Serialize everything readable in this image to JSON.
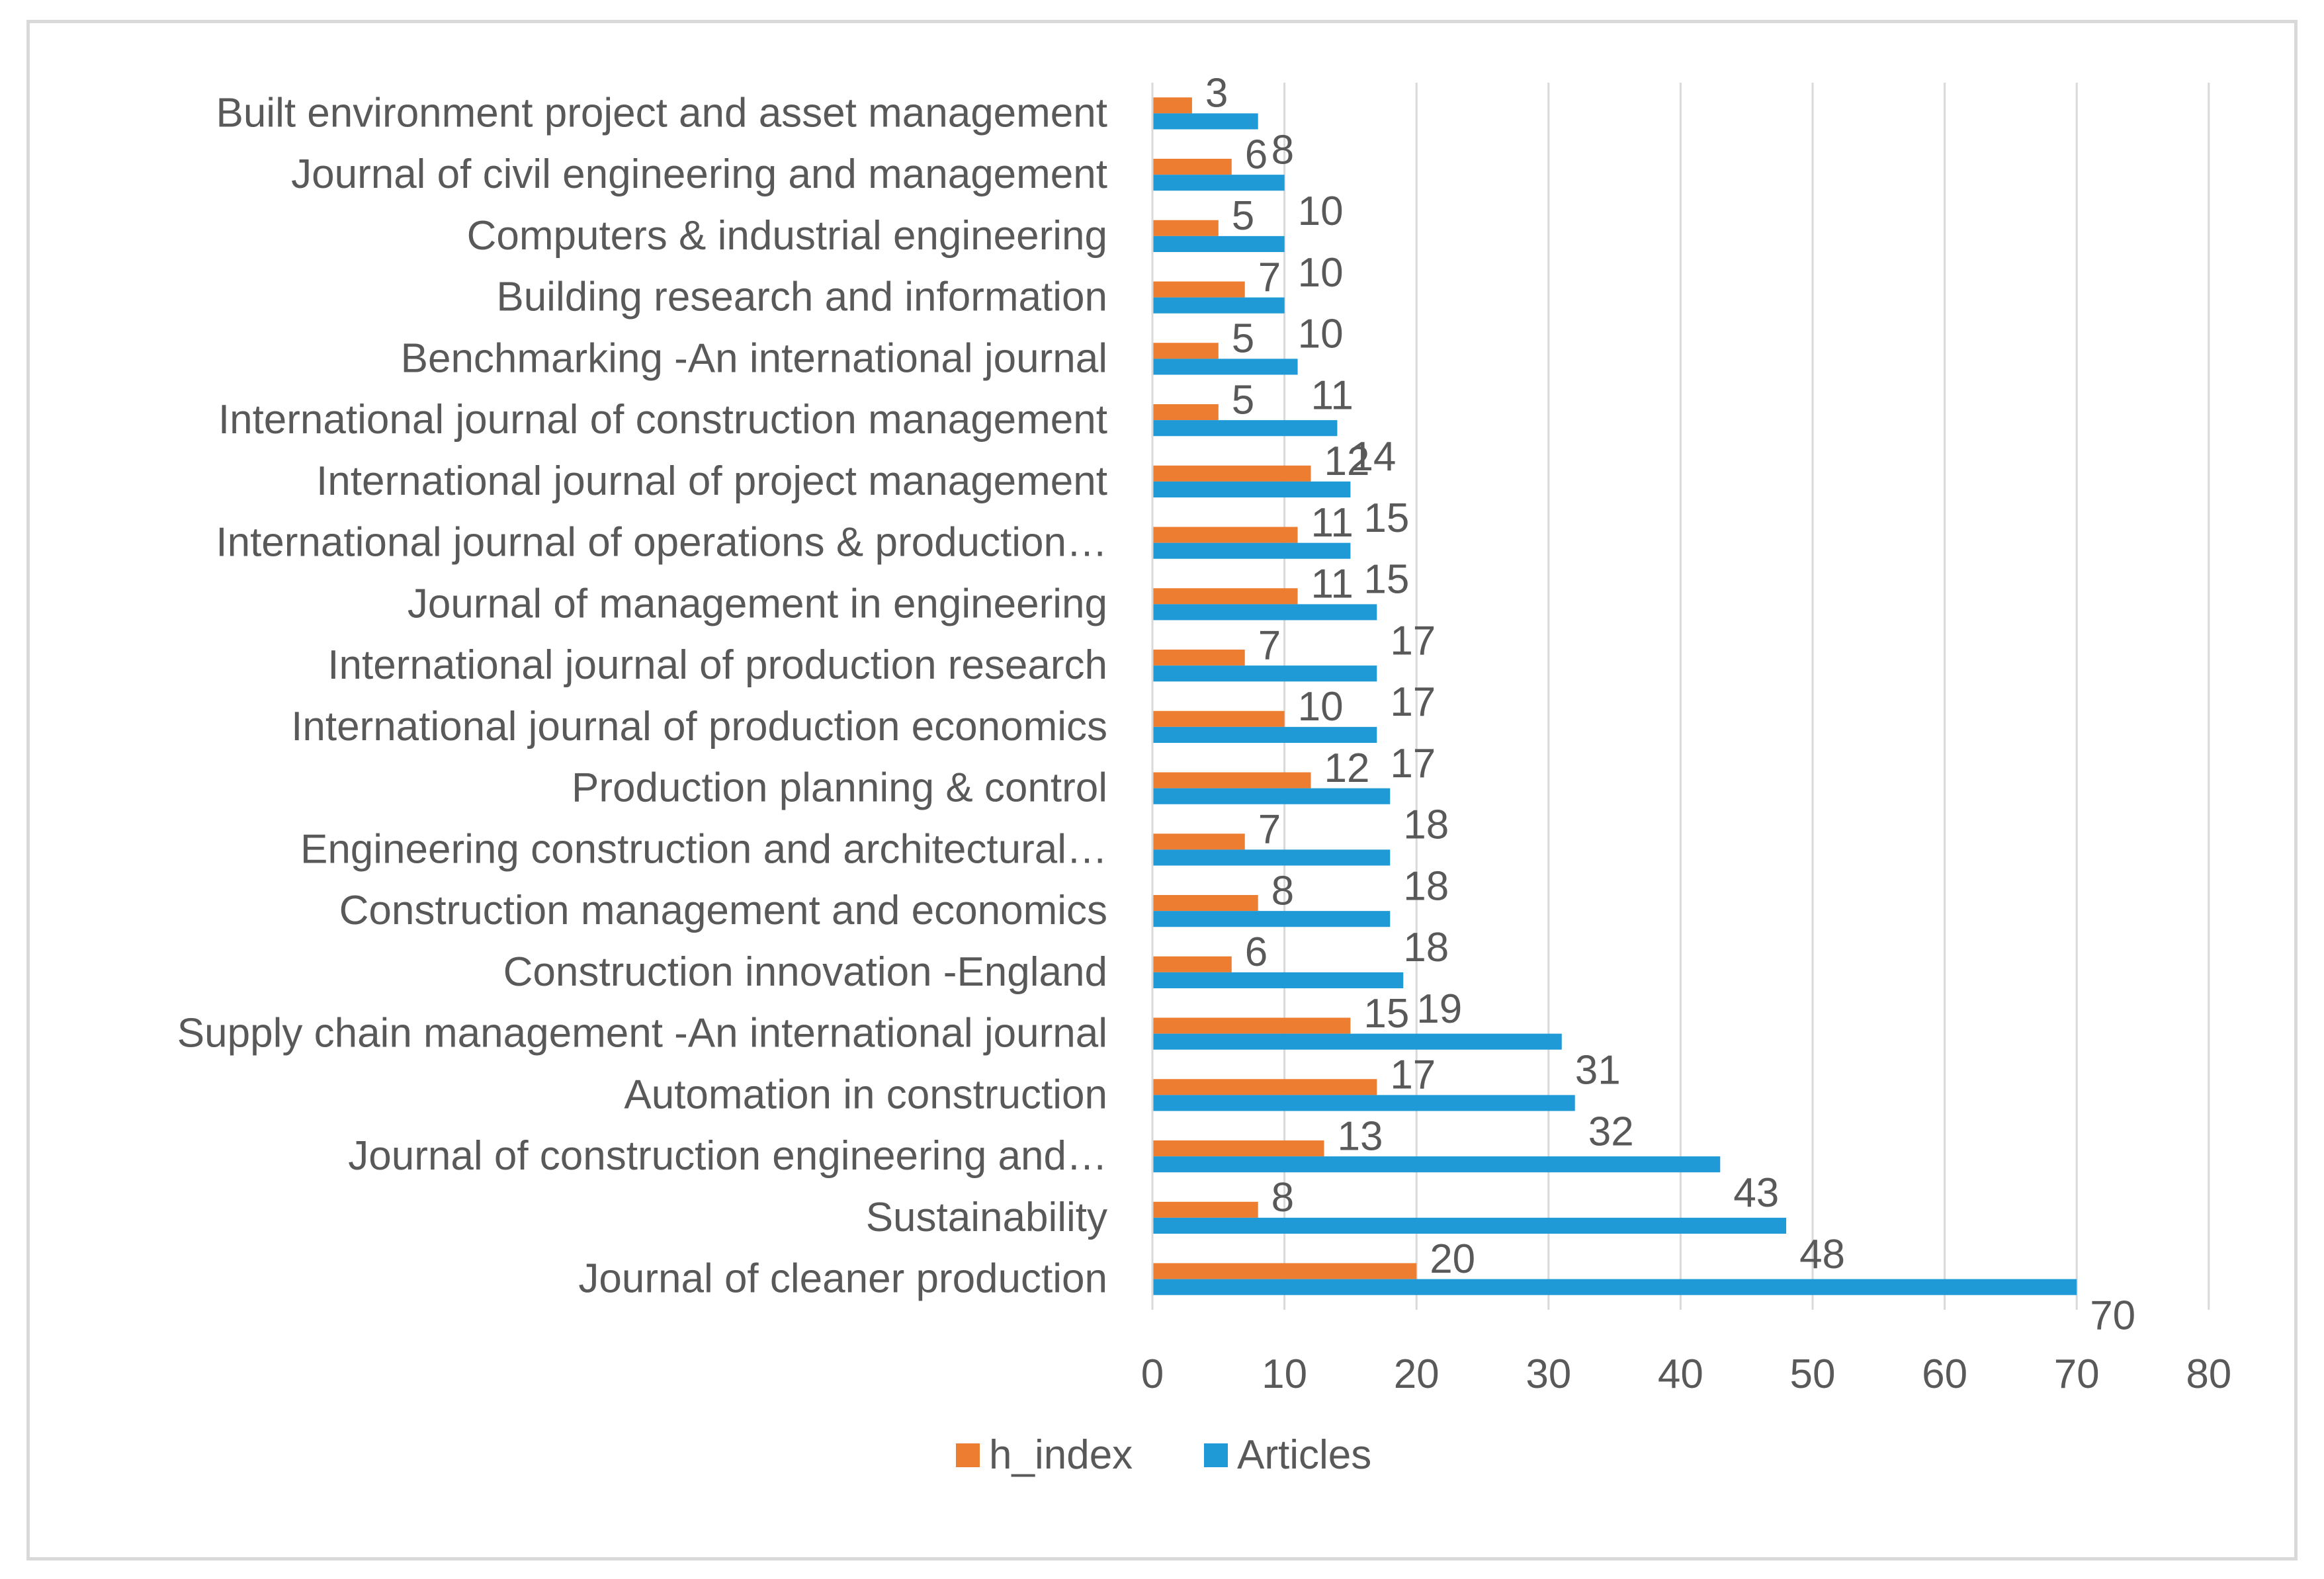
{
  "chart_data": {
    "type": "bar",
    "orientation": "horizontal",
    "categories": [
      "Journal of cleaner production",
      "Sustainability",
      "Journal of construction engineering and…",
      "Automation in construction",
      "Supply chain management -An international journal",
      "Construction innovation -England",
      "Construction management and economics",
      "Engineering construction and architectural…",
      "Production planning & control",
      "International journal of production economics",
      "International journal of production research",
      "Journal of management in engineering",
      "International journal of operations & production…",
      "International journal of project management",
      "International journal of construction management",
      "Benchmarking -An international journal",
      "Building research and information",
      "Computers & industrial engineering",
      "Journal of civil engineering and management",
      "Built environment project and asset management"
    ],
    "series": [
      {
        "name": "h_index",
        "color": "#ed7d31",
        "values": [
          20,
          8,
          13,
          17,
          15,
          6,
          8,
          7,
          12,
          10,
          7,
          11,
          11,
          12,
          5,
          5,
          7,
          5,
          6,
          3
        ]
      },
      {
        "name": "Articles",
        "color": "#1f9ad6",
        "values": [
          70,
          48,
          43,
          32,
          31,
          19,
          18,
          18,
          18,
          17,
          17,
          17,
          15,
          15,
          14,
          11,
          10,
          10,
          10,
          8
        ]
      }
    ],
    "xlim": [
      0,
      80
    ],
    "xticks": [
      0,
      10,
      20,
      30,
      40,
      50,
      60,
      70,
      80
    ],
    "grid": true,
    "gridline_color": "#d9d9d9",
    "legend_position": "bottom",
    "title": "",
    "xlabel": "",
    "ylabel": ""
  }
}
